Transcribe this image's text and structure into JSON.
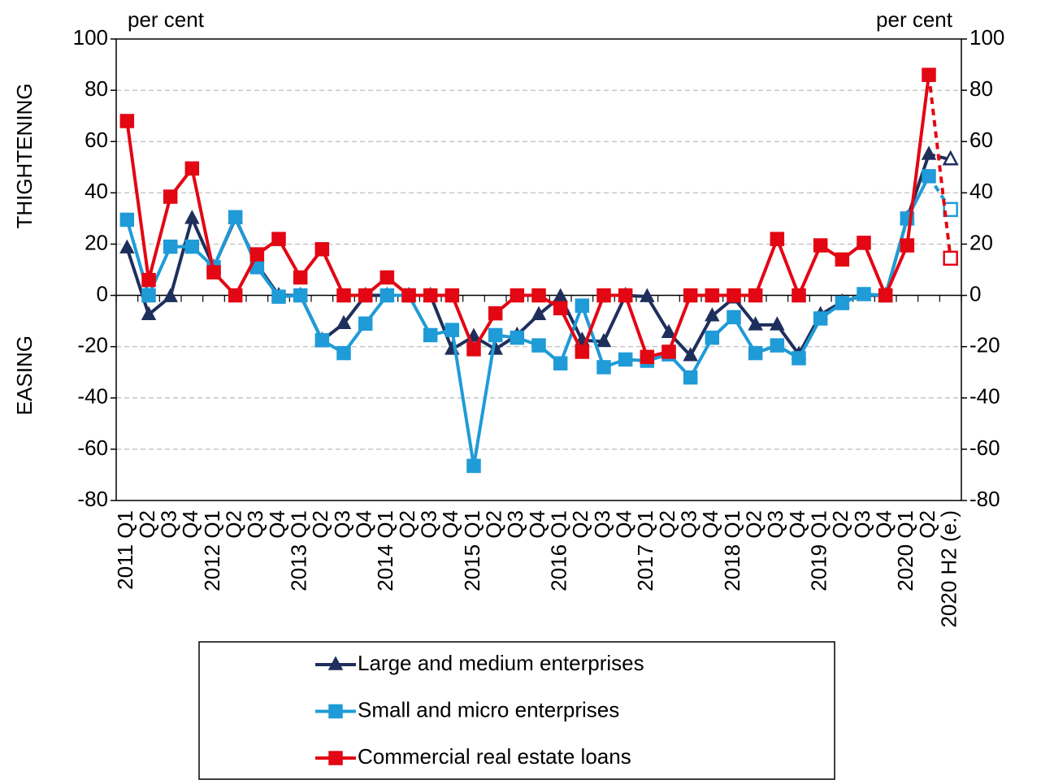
{
  "chart_data": {
    "type": "line",
    "unit_left": "per cent",
    "unit_right": "per cent",
    "ylabel_top": "THIGHTENING",
    "ylabel_bottom": "EASING",
    "categories": [
      "2011 Q1",
      "Q2",
      "Q3",
      "Q4",
      "2012 Q1",
      "Q2",
      "Q3",
      "Q4",
      "2013 Q1",
      "Q2",
      "Q3",
      "Q4",
      "2014 Q1",
      "Q2",
      "Q3",
      "Q4",
      "2015 Q1",
      "Q2",
      "Q3",
      "Q4",
      "2016 Q1",
      "Q2",
      "Q3",
      "Q4",
      "2017 Q1",
      "Q2",
      "Q3",
      "Q4",
      "2018 Q1",
      "Q2",
      "Q3",
      "Q4",
      "2019 Q1",
      "Q2",
      "Q3",
      "Q4",
      "2020 Q1",
      "Q2",
      "2020 H2 (e.)"
    ],
    "series": [
      {
        "name": "Large and medium enterprises",
        "color": "#1f2f5c",
        "marker": "triangle",
        "values": [
          18.5,
          -7.5,
          -0.5,
          30,
          11,
          30,
          12,
          0,
          0,
          -17.5,
          -11,
          0,
          0,
          0,
          0,
          -21,
          -16,
          -21,
          -15.5,
          -7.5,
          -0.5,
          -17.5,
          -18,
          0,
          -0.5,
          -14.5,
          -23.5,
          -8,
          -1,
          -11.5,
          -11.5,
          -23,
          -7.5,
          -2.5,
          0,
          0,
          30,
          55,
          53
        ]
      },
      {
        "name": "Small and micro enterprises",
        "color": "#1f9bd7",
        "marker": "square",
        "values": [
          29.5,
          0,
          19,
          19,
          11,
          30.5,
          11,
          -0.5,
          0,
          -17.5,
          -22.5,
          -11,
          0,
          0,
          -15.5,
          -13.5,
          -66.5,
          -15.5,
          -16.5,
          -19.5,
          -26.5,
          -4,
          -28,
          -25,
          -25.5,
          -23,
          -32,
          -16.5,
          -8.5,
          -22.5,
          -19.5,
          -24.5,
          -9,
          -3,
          0.5,
          0,
          30,
          46.5,
          33.5
        ]
      },
      {
        "name": "Commercial real estate loans",
        "color": "#e30613",
        "marker": "square",
        "values": [
          68,
          6,
          38.5,
          49.5,
          9,
          0,
          16,
          22,
          7,
          18,
          0,
          0,
          7,
          0,
          0,
          0,
          -21,
          -7,
          0,
          0,
          -5,
          -22,
          0,
          0,
          -24,
          -22,
          0,
          0,
          0,
          0,
          22,
          0,
          19.5,
          14,
          20.5,
          0,
          19.5,
          86,
          14.5
        ]
      }
    ],
    "ylim": [
      -80,
      100
    ],
    "yticks": [
      -80,
      -60,
      -40,
      -20,
      0,
      20,
      40,
      60,
      80,
      100
    ],
    "y2lim": [
      -80,
      100
    ],
    "y2ticks": [
      -80,
      -60,
      -40,
      -20,
      0,
      20,
      40,
      60,
      80,
      100
    ],
    "grid": true
  }
}
